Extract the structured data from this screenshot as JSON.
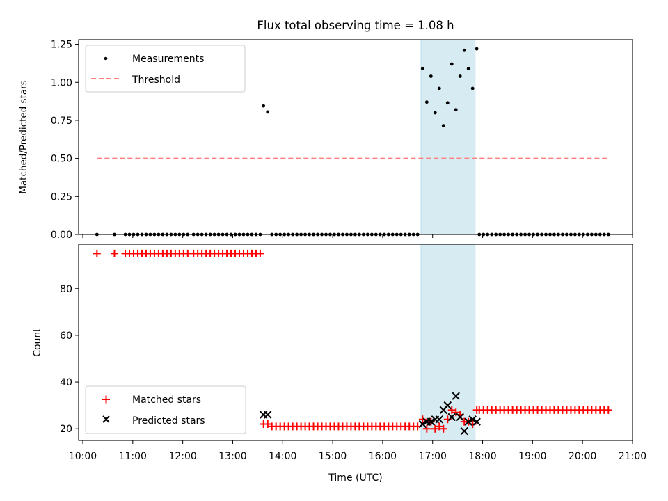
{
  "chart_data": [
    {
      "type": "scatter",
      "title": "Flux total observing time = 1.08 h",
      "ylabel": "Matched/Predicted stars",
      "xlabel": "",
      "ylim": [
        0,
        1.28
      ],
      "yticks": [
        "0.00",
        "0.25",
        "0.50",
        "0.75",
        "1.00",
        "1.25"
      ],
      "grid": false,
      "legend_position": "upper-left",
      "highlight_span": {
        "start": "16:46",
        "end": "17:51",
        "color": "#add8e6"
      },
      "series": [
        {
          "name": "Measurements",
          "marker": "dot",
          "color": "#000000",
          "points": [
            [
              "10:17",
              0
            ],
            [
              "10:38",
              0
            ],
            [
              "10:51",
              0
            ],
            [
              "10:56",
              0
            ],
            [
              "11:01",
              0
            ],
            [
              "11:06",
              0
            ],
            [
              "11:11",
              0
            ],
            [
              "11:16",
              0
            ],
            [
              "11:21",
              0
            ],
            [
              "11:26",
              0
            ],
            [
              "11:31",
              0
            ],
            [
              "11:36",
              0
            ],
            [
              "11:41",
              0
            ],
            [
              "11:46",
              0
            ],
            [
              "11:51",
              0
            ],
            [
              "11:56",
              0
            ],
            [
              "12:01",
              0
            ],
            [
              "12:06",
              0
            ],
            [
              "12:13",
              0
            ],
            [
              "12:18",
              0
            ],
            [
              "12:23",
              0
            ],
            [
              "12:28",
              0
            ],
            [
              "12:33",
              0
            ],
            [
              "12:38",
              0
            ],
            [
              "12:43",
              0
            ],
            [
              "12:48",
              0
            ],
            [
              "12:53",
              0
            ],
            [
              "12:58",
              0
            ],
            [
              "13:03",
              0
            ],
            [
              "13:08",
              0
            ],
            [
              "13:13",
              0
            ],
            [
              "13:18",
              0
            ],
            [
              "13:23",
              0
            ],
            [
              "13:28",
              0
            ],
            [
              "13:33",
              0
            ],
            [
              "13:37",
              0.845
            ],
            [
              "13:42",
              0.805
            ],
            [
              "13:47",
              0
            ],
            [
              "13:52",
              0
            ],
            [
              "13:57",
              0
            ],
            [
              "14:02",
              0
            ],
            [
              "14:07",
              0
            ],
            [
              "14:12",
              0
            ],
            [
              "14:17",
              0
            ],
            [
              "14:22",
              0
            ],
            [
              "14:27",
              0
            ],
            [
              "14:32",
              0
            ],
            [
              "14:37",
              0
            ],
            [
              "14:42",
              0
            ],
            [
              "14:47",
              0
            ],
            [
              "14:52",
              0
            ],
            [
              "14:57",
              0
            ],
            [
              "15:02",
              0
            ],
            [
              "15:07",
              0
            ],
            [
              "15:12",
              0
            ],
            [
              "15:17",
              0
            ],
            [
              "15:22",
              0
            ],
            [
              "15:27",
              0
            ],
            [
              "15:32",
              0
            ],
            [
              "15:37",
              0
            ],
            [
              "15:42",
              0
            ],
            [
              "15:47",
              0
            ],
            [
              "15:52",
              0
            ],
            [
              "15:57",
              0
            ],
            [
              "16:02",
              0
            ],
            [
              "16:07",
              0
            ],
            [
              "16:12",
              0
            ],
            [
              "16:17",
              0
            ],
            [
              "16:22",
              0
            ],
            [
              "16:27",
              0
            ],
            [
              "16:32",
              0
            ],
            [
              "16:37",
              0
            ],
            [
              "16:42",
              0
            ],
            [
              "16:48",
              1.09
            ],
            [
              "16:53",
              0.87
            ],
            [
              "16:58",
              1.04
            ],
            [
              "17:03",
              0.8
            ],
            [
              "17:08",
              0.96
            ],
            [
              "17:13",
              0.715
            ],
            [
              "17:18",
              0.865
            ],
            [
              "17:23",
              1.12
            ],
            [
              "17:28",
              0.82
            ],
            [
              "17:33",
              1.04
            ],
            [
              "17:38",
              1.21
            ],
            [
              "17:43",
              1.09
            ],
            [
              "17:48",
              0.96
            ],
            [
              "17:53",
              1.22
            ],
            [
              "17:56",
              0
            ],
            [
              "18:01",
              0
            ],
            [
              "18:06",
              0
            ],
            [
              "18:11",
              0
            ],
            [
              "18:16",
              0
            ],
            [
              "18:21",
              0
            ],
            [
              "18:26",
              0
            ],
            [
              "18:31",
              0
            ],
            [
              "18:36",
              0
            ],
            [
              "18:41",
              0
            ],
            [
              "18:46",
              0
            ],
            [
              "18:51",
              0
            ],
            [
              "18:56",
              0
            ],
            [
              "19:01",
              0
            ],
            [
              "19:06",
              0
            ],
            [
              "19:11",
              0
            ],
            [
              "19:16",
              0
            ],
            [
              "19:21",
              0
            ],
            [
              "19:26",
              0
            ],
            [
              "19:31",
              0
            ],
            [
              "19:36",
              0
            ],
            [
              "19:41",
              0
            ],
            [
              "19:46",
              0
            ],
            [
              "19:51",
              0
            ],
            [
              "19:56",
              0
            ],
            [
              "20:01",
              0
            ],
            [
              "20:06",
              0
            ],
            [
              "20:11",
              0
            ],
            [
              "20:16",
              0
            ],
            [
              "20:21",
              0
            ],
            [
              "20:26",
              0
            ],
            [
              "20:31",
              0
            ]
          ]
        },
        {
          "name": "Threshold",
          "marker": "dashed-line",
          "color": "#ff7f7f",
          "points": [
            [
              "10:17",
              0.5
            ],
            [
              "20:31",
              0.5
            ]
          ]
        }
      ]
    },
    {
      "type": "scatter",
      "title": "",
      "ylabel": "Count",
      "xlabel": "Time (UTC)",
      "ylim": [
        15,
        99
      ],
      "yticks": [
        "20",
        "40",
        "60",
        "80"
      ],
      "xticks": [
        "10:00",
        "11:00",
        "12:00",
        "13:00",
        "14:00",
        "15:00",
        "16:00",
        "17:00",
        "18:00",
        "19:00",
        "20:00",
        "21:00"
      ],
      "xlim": [
        "09:55",
        "21:00"
      ],
      "grid": false,
      "legend_position": "lower-left",
      "highlight_span": {
        "start": "16:46",
        "end": "17:51",
        "color": "#add8e6"
      },
      "series": [
        {
          "name": "Matched stars",
          "marker": "plus",
          "color": "#ff0000",
          "points": [
            [
              "10:17",
              95
            ],
            [
              "10:38",
              95
            ],
            [
              "10:51",
              95
            ],
            [
              "10:56",
              95
            ],
            [
              "11:01",
              95
            ],
            [
              "11:06",
              95
            ],
            [
              "11:11",
              95
            ],
            [
              "11:16",
              95
            ],
            [
              "11:21",
              95
            ],
            [
              "11:26",
              95
            ],
            [
              "11:31",
              95
            ],
            [
              "11:36",
              95
            ],
            [
              "11:41",
              95
            ],
            [
              "11:46",
              95
            ],
            [
              "11:51",
              95
            ],
            [
              "11:56",
              95
            ],
            [
              "12:01",
              95
            ],
            [
              "12:06",
              95
            ],
            [
              "12:13",
              95
            ],
            [
              "12:18",
              95
            ],
            [
              "12:23",
              95
            ],
            [
              "12:28",
              95
            ],
            [
              "12:33",
              95
            ],
            [
              "12:38",
              95
            ],
            [
              "12:43",
              95
            ],
            [
              "12:48",
              95
            ],
            [
              "12:53",
              95
            ],
            [
              "12:58",
              95
            ],
            [
              "13:03",
              95
            ],
            [
              "13:08",
              95
            ],
            [
              "13:13",
              95
            ],
            [
              "13:18",
              95
            ],
            [
              "13:23",
              95
            ],
            [
              "13:28",
              95
            ],
            [
              "13:33",
              95
            ],
            [
              "13:37",
              22
            ],
            [
              "13:42",
              22
            ],
            [
              "13:47",
              21
            ],
            [
              "13:52",
              21
            ],
            [
              "13:57",
              21
            ],
            [
              "14:02",
              21
            ],
            [
              "14:07",
              21
            ],
            [
              "14:12",
              21
            ],
            [
              "14:17",
              21
            ],
            [
              "14:22",
              21
            ],
            [
              "14:27",
              21
            ],
            [
              "14:32",
              21
            ],
            [
              "14:37",
              21
            ],
            [
              "14:42",
              21
            ],
            [
              "14:47",
              21
            ],
            [
              "14:52",
              21
            ],
            [
              "14:57",
              21
            ],
            [
              "15:02",
              21
            ],
            [
              "15:07",
              21
            ],
            [
              "15:12",
              21
            ],
            [
              "15:17",
              21
            ],
            [
              "15:22",
              21
            ],
            [
              "15:27",
              21
            ],
            [
              "15:32",
              21
            ],
            [
              "15:37",
              21
            ],
            [
              "15:42",
              21
            ],
            [
              "15:47",
              21
            ],
            [
              "15:52",
              21
            ],
            [
              "15:57",
              21
            ],
            [
              "16:02",
              21
            ],
            [
              "16:07",
              21
            ],
            [
              "16:12",
              21
            ],
            [
              "16:17",
              21
            ],
            [
              "16:22",
              21
            ],
            [
              "16:27",
              21
            ],
            [
              "16:32",
              21
            ],
            [
              "16:37",
              21
            ],
            [
              "16:42",
              21
            ],
            [
              "16:48",
              24
            ],
            [
              "16:53",
              20
            ],
            [
              "16:58",
              23
            ],
            [
              "17:03",
              20
            ],
            [
              "17:08",
              21
            ],
            [
              "17:13",
              20
            ],
            [
              "17:18",
              24
            ],
            [
              "17:23",
              28
            ],
            [
              "17:28",
              27
            ],
            [
              "17:33",
              26
            ],
            [
              "17:38",
              23
            ],
            [
              "17:43",
              23
            ],
            [
              "17:48",
              22
            ],
            [
              "17:53",
              28
            ],
            [
              "17:56",
              28
            ],
            [
              "18:01",
              28
            ],
            [
              "18:06",
              28
            ],
            [
              "18:11",
              28
            ],
            [
              "18:16",
              28
            ],
            [
              "18:21",
              28
            ],
            [
              "18:26",
              28
            ],
            [
              "18:31",
              28
            ],
            [
              "18:36",
              28
            ],
            [
              "18:41",
              28
            ],
            [
              "18:46",
              28
            ],
            [
              "18:51",
              28
            ],
            [
              "18:56",
              28
            ],
            [
              "19:01",
              28
            ],
            [
              "19:06",
              28
            ],
            [
              "19:11",
              28
            ],
            [
              "19:16",
              28
            ],
            [
              "19:21",
              28
            ],
            [
              "19:26",
              28
            ],
            [
              "19:31",
              28
            ],
            [
              "19:36",
              28
            ],
            [
              "19:41",
              28
            ],
            [
              "19:46",
              28
            ],
            [
              "19:51",
              28
            ],
            [
              "19:56",
              28
            ],
            [
              "20:01",
              28
            ],
            [
              "20:06",
              28
            ],
            [
              "20:11",
              28
            ],
            [
              "20:16",
              28
            ],
            [
              "20:21",
              28
            ],
            [
              "20:26",
              28
            ],
            [
              "20:31",
              28
            ]
          ]
        },
        {
          "name": "Predicted stars",
          "marker": "x",
          "color": "#000000",
          "points": [
            [
              "13:37",
              26
            ],
            [
              "13:42",
              26
            ],
            [
              "16:48",
              22
            ],
            [
              "16:53",
              23
            ],
            [
              "16:58",
              23
            ],
            [
              "17:03",
              24
            ],
            [
              "17:08",
              24
            ],
            [
              "17:13",
              28
            ],
            [
              "17:18",
              30
            ],
            [
              "17:23",
              25
            ],
            [
              "17:28",
              34
            ],
            [
              "17:33",
              25
            ],
            [
              "17:38",
              19
            ],
            [
              "17:43",
              23
            ],
            [
              "17:48",
              24
            ],
            [
              "17:53",
              23
            ]
          ]
        }
      ]
    }
  ]
}
